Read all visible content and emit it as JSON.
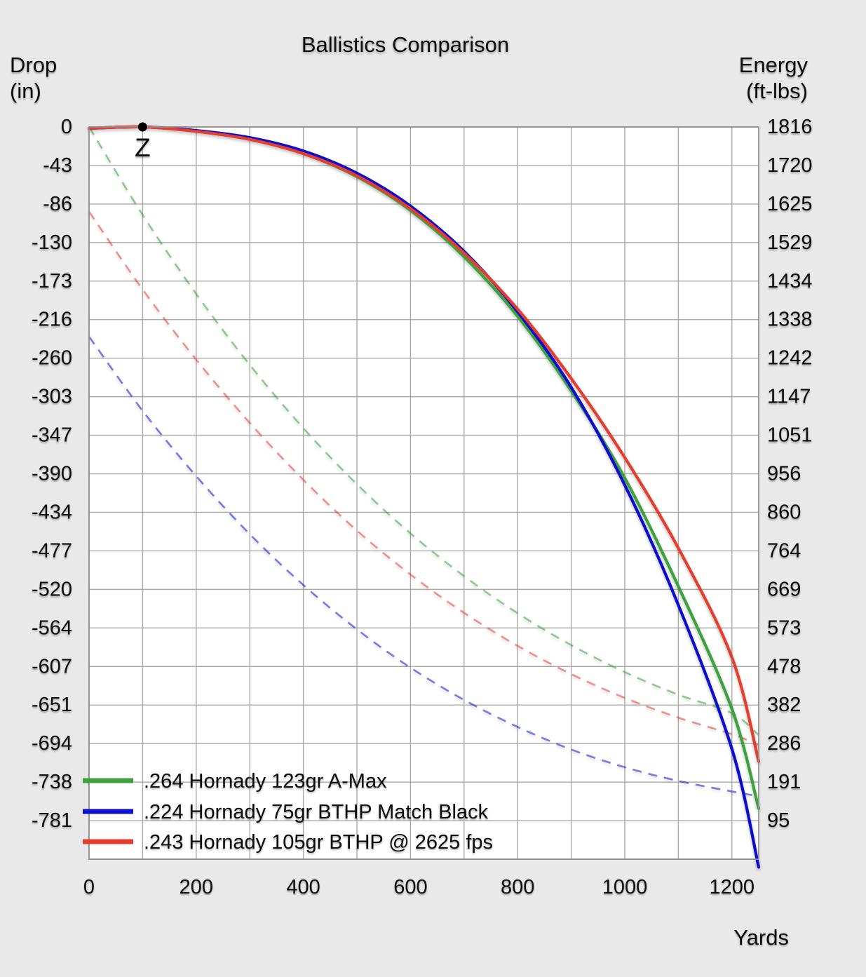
{
  "chart": {
    "title": "Ballistics Comparison",
    "background_color": "#e9e9e9",
    "plot_background_color": "#ffffff",
    "grid_color": "#a9a9a9",
    "border_color": "#8f8f8f",
    "x_axis": {
      "label": "Yards",
      "ticks": [
        0,
        200,
        400,
        600,
        800,
        1000,
        1200
      ],
      "gridline_step_yards": 100,
      "min": 0,
      "max": 1250
    },
    "left_axis": {
      "label_line1": "Drop",
      "label_line2": "(in)",
      "ticks": [
        0,
        -43,
        -86,
        -130,
        -173,
        -216,
        -260,
        -303,
        -347,
        -390,
        -434,
        -477,
        -520,
        -564,
        -607,
        -651,
        -694,
        -738,
        -781
      ],
      "axis_top_value": 0,
      "axis_bottom_value": -824
    },
    "right_axis": {
      "label_line1": "Energy",
      "label_line2": "(ft-lbs)",
      "ticks": [
        1816,
        1720,
        1625,
        1529,
        1434,
        1338,
        1242,
        1147,
        1051,
        956,
        860,
        764,
        669,
        573,
        478,
        382,
        286,
        191,
        95
      ],
      "axis_top_value": 1816,
      "axis_bottom_value": 0
    },
    "zero_marker": {
      "label": "Z",
      "yards": 100,
      "drop_in": 0,
      "dot_color": "#000000"
    }
  },
  "chart_data": {
    "type": "line",
    "title": "Ballistics Comparison",
    "xlabel": "Yards",
    "ylabel_left": "Drop (in)",
    "ylabel_right": "Energy (ft-lbs)",
    "x_range_yards": [
      0,
      1250
    ],
    "left_axis_range_in": [
      -824,
      0
    ],
    "right_axis_range_ftlbs": [
      0,
      1816
    ],
    "grid": true,
    "legend_position": "bottom-left",
    "line_meaning": {
      "solid": "drop (in) vs left axis",
      "dashed": "energy (ft-lbs) vs right axis"
    },
    "x_yards": [
      0,
      100,
      200,
      300,
      400,
      500,
      600,
      700,
      800,
      900,
      1000,
      1100,
      1200,
      1250
    ],
    "series": [
      {
        "name": ".264 Hornady 123gr A-Max",
        "color": "#3da13d",
        "drop_in": [
          -1.5,
          0,
          -5,
          -14,
          -30,
          -56,
          -94,
          -146,
          -213,
          -297,
          -395,
          -517,
          -655,
          -767
        ],
        "energy_ftlbs": [
          1816,
          1598,
          1402,
          1226,
          1069,
          930,
          808,
          702,
          610,
          531,
          464,
          408,
          362,
          308
        ]
      },
      {
        "name": ".224 Hornady 75gr BTHP Match Black",
        "color": "#0f0fd0",
        "drop_in": [
          -1.5,
          0,
          -4,
          -12,
          -27,
          -52,
          -89,
          -140,
          -208,
          -293,
          -403,
          -538,
          -700,
          -833
        ],
        "energy_ftlbs": [
          1296,
          1112,
          950,
          806,
          680,
          570,
          475,
          395,
          328,
          272,
          228,
          194,
          168,
          156
        ]
      },
      {
        "name": ".243 Hornady 105gr BTHP @ 2625 fps",
        "color": "#e63c2e",
        "drop_in": [
          -1.5,
          0,
          -5,
          -14,
          -30,
          -55,
          -92,
          -142,
          -205,
          -283,
          -372,
          -474,
          -597,
          -714
        ],
        "energy_ftlbs": [
          1606,
          1413,
          1239,
          1082,
          941,
          815,
          706,
          611,
          529,
          459,
          400,
          351,
          310,
          283
        ]
      }
    ]
  }
}
